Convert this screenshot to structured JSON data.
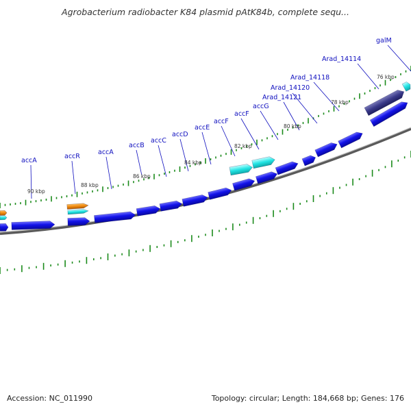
{
  "title": "Agrobacterium radiobacter K84 plasmid pAtK84b, complete sequ...",
  "map": {
    "tick_labels": [
      "90 kbp",
      "88 kbp",
      "86 kbp",
      "84 kbp",
      "82 kbp",
      "80 kbp",
      "78 kbp",
      "76 kbp"
    ],
    "gene_labels": [
      "accA",
      "accR",
      "accA",
      "accB",
      "accC",
      "accD",
      "accE",
      "accF",
      "accF",
      "accG",
      "Arad_14121",
      "Arad_14120",
      "Arad_14118",
      "Arad_14114",
      "galM"
    ],
    "colors": {
      "cds_forward": "#1010e0",
      "cds_reverse_orange": "#f08a10",
      "cds_cyan": "#20e0e0",
      "cds_dark": "#3a3a8a",
      "backbone": "#888888",
      "gc_ticks": "#1a8a1a",
      "label": "#0d0dbe"
    }
  },
  "footer": {
    "accession": "Accession: NC_011990",
    "stats": "Topology: circular; Length: 184,668 bp; Genes: 176"
  }
}
